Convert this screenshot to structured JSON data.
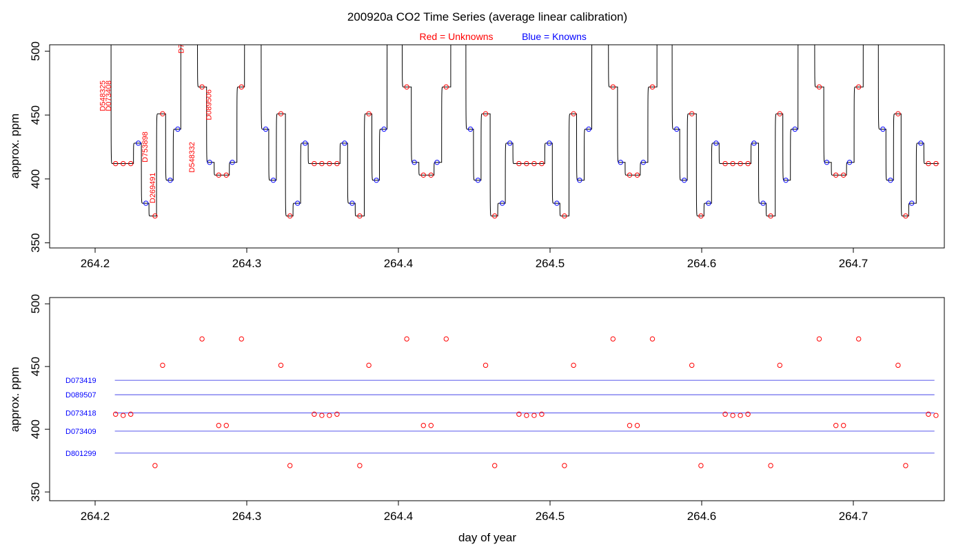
{
  "figure": {
    "title": "200920a   CO2 Time Series (average linear calibration)",
    "legend_red_label": "Red = Unknowns",
    "legend_blue_label": "Blue = Knowns",
    "xlabel": "day of year"
  },
  "colors": {
    "unknowns": "#ff0000",
    "knowns": "#0000ff",
    "reference_lines": "#6a6aee",
    "trace": "#000000",
    "axes": "#000000"
  },
  "chart_data": [
    {
      "type": "line",
      "panel": "top",
      "ylabel": "approx. ppm",
      "xlim": [
        264.17,
        264.76
      ],
      "ylim": [
        346,
        505
      ],
      "xticks": [
        264.2,
        264.3,
        264.4,
        264.5,
        264.6,
        264.7
      ],
      "xtick_labels": [
        "264.2",
        "264.3",
        "264.4",
        "264.5",
        "264.6",
        "264.7"
      ],
      "yticks": [
        350,
        400,
        450,
        500
      ],
      "ytick_labels": [
        "350",
        "400",
        "450",
        "500"
      ],
      "trace_steps": [
        {
          "start": 264.205,
          "end": 264.2105,
          "y": 525
        },
        {
          "start": 264.2105,
          "end": 264.2253,
          "y": 412,
          "points": [
            264.2135,
            264.2185,
            264.2235
          ],
          "kind": "unknown"
        },
        {
          "start": 264.2253,
          "end": 264.2305,
          "y": 428,
          "points": [
            264.2285
          ],
          "kind": "known"
        },
        {
          "start": 264.2305,
          "end": 264.2355,
          "y": 381,
          "points": [
            264.2335
          ],
          "kind": "known"
        },
        {
          "start": 264.2355,
          "end": 264.2405,
          "y": 371,
          "points": [
            264.2395
          ],
          "kind": "unknown"
        },
        {
          "start": 264.2405,
          "end": 264.2465,
          "y": 451,
          "points": [
            264.2445
          ],
          "kind": "unknown"
        },
        {
          "start": 264.2465,
          "end": 264.2515,
          "y": 399,
          "points": [
            264.2495
          ],
          "kind": "known"
        },
        {
          "start": 264.2515,
          "end": 264.2565,
          "y": 439,
          "points": [
            264.2545
          ],
          "kind": "known"
        },
        {
          "start": 264.2565,
          "end": 264.2675,
          "y": 525
        },
        {
          "start": 264.2675,
          "end": 264.2735,
          "y": 472,
          "points": [
            264.2705
          ],
          "kind": "unknown"
        },
        {
          "start": 264.2735,
          "end": 264.2785,
          "y": 413,
          "points": [
            264.2755
          ],
          "kind": "known"
        },
        {
          "start": 264.2785,
          "end": 264.2885,
          "y": 403,
          "points": [
            264.2815,
            264.2865
          ],
          "kind": "unknown"
        },
        {
          "start": 264.2885,
          "end": 264.2935,
          "y": 413,
          "points": [
            264.2905
          ],
          "kind": "known"
        },
        {
          "start": 264.2935,
          "end": 264.2985,
          "y": 472,
          "points": [
            264.2965
          ],
          "kind": "unknown"
        },
        {
          "start": 264.2985,
          "end": 264.3095,
          "y": 525
        },
        {
          "start": 264.3095,
          "end": 264.3145,
          "y": 439,
          "points": [
            264.3125
          ],
          "kind": "known"
        },
        {
          "start": 264.3145,
          "end": 264.3195,
          "y": 399,
          "points": [
            264.3175
          ],
          "kind": "known"
        },
        {
          "start": 264.3195,
          "end": 264.3255,
          "y": 451,
          "points": [
            264.3225
          ],
          "kind": "unknown"
        },
        {
          "start": 264.3255,
          "end": 264.3305,
          "y": 371,
          "points": [
            264.3285
          ],
          "kind": "unknown"
        },
        {
          "start": 264.3305,
          "end": 264.3355,
          "y": 381,
          "points": [
            264.3335
          ],
          "kind": "known"
        },
        {
          "start": 264.3355,
          "end": 264.3405,
          "y": 428,
          "points": [
            264.3385
          ],
          "kind": "known"
        },
        {
          "start": 264.3405,
          "end": 264.3615,
          "y": 412,
          "points": [
            264.3445,
            264.3495,
            264.3545,
            264.3595
          ],
          "kind": "unknown"
        },
        {
          "start": 264.3615,
          "end": 264.3665,
          "y": 428,
          "points": [
            264.3645
          ],
          "kind": "known"
        },
        {
          "start": 264.3665,
          "end": 264.3715,
          "y": 381,
          "points": [
            264.3695
          ],
          "kind": "known"
        },
        {
          "start": 264.3715,
          "end": 264.3775,
          "y": 371,
          "points": [
            264.3745
          ],
          "kind": "unknown"
        },
        {
          "start": 264.3775,
          "end": 264.3825,
          "y": 451,
          "points": [
            264.3805
          ],
          "kind": "unknown"
        },
        {
          "start": 264.3825,
          "end": 264.3875,
          "y": 399,
          "points": [
            264.3855
          ],
          "kind": "known"
        },
        {
          "start": 264.3875,
          "end": 264.3925,
          "y": 439,
          "points": [
            264.3905
          ],
          "kind": "known"
        },
        {
          "start": 264.3925,
          "end": 264.4025,
          "y": 525
        },
        {
          "start": 264.4025,
          "end": 264.4085,
          "y": 472,
          "points": [
            264.4055
          ],
          "kind": "unknown"
        },
        {
          "start": 264.4085,
          "end": 264.4135,
          "y": 413,
          "points": [
            264.4105
          ],
          "kind": "known"
        },
        {
          "start": 264.4135,
          "end": 264.4235,
          "y": 403,
          "points": [
            264.4165,
            264.4215
          ],
          "kind": "unknown"
        },
        {
          "start": 264.4235,
          "end": 264.4285,
          "y": 413,
          "points": [
            264.4255
          ],
          "kind": "known"
        },
        {
          "start": 264.4285,
          "end": 264.4345,
          "y": 472,
          "points": [
            264.4315
          ],
          "kind": "unknown"
        },
        {
          "start": 264.4345,
          "end": 264.4445,
          "y": 525
        },
        {
          "start": 264.4445,
          "end": 264.4495,
          "y": 439,
          "points": [
            264.4475
          ],
          "kind": "known"
        },
        {
          "start": 264.4495,
          "end": 264.4545,
          "y": 399,
          "points": [
            264.4525
          ],
          "kind": "known"
        },
        {
          "start": 264.4545,
          "end": 264.4605,
          "y": 451,
          "points": [
            264.4575
          ],
          "kind": "unknown"
        },
        {
          "start": 264.4605,
          "end": 264.4655,
          "y": 371,
          "points": [
            264.4635
          ],
          "kind": "unknown"
        },
        {
          "start": 264.4655,
          "end": 264.4705,
          "y": 381,
          "points": [
            264.4685
          ],
          "kind": "known"
        },
        {
          "start": 264.4705,
          "end": 264.4755,
          "y": 428,
          "points": [
            264.4735
          ],
          "kind": "known"
        },
        {
          "start": 264.4755,
          "end": 264.4965,
          "y": 412,
          "points": [
            264.4795,
            264.4845,
            264.4895,
            264.4945
          ],
          "kind": "unknown"
        },
        {
          "start": 264.4965,
          "end": 264.5015,
          "y": 428,
          "points": [
            264.4995
          ],
          "kind": "known"
        },
        {
          "start": 264.5015,
          "end": 264.5065,
          "y": 381,
          "points": [
            264.5045
          ],
          "kind": "known"
        },
        {
          "start": 264.5065,
          "end": 264.5125,
          "y": 371,
          "points": [
            264.5095
          ],
          "kind": "unknown"
        },
        {
          "start": 264.5125,
          "end": 264.5175,
          "y": 451,
          "points": [
            264.5155
          ],
          "kind": "unknown"
        },
        {
          "start": 264.5175,
          "end": 264.5225,
          "y": 399,
          "points": [
            264.5195
          ],
          "kind": "known"
        },
        {
          "start": 264.5225,
          "end": 264.5275,
          "y": 439,
          "points": [
            264.5255
          ],
          "kind": "known"
        },
        {
          "start": 264.5275,
          "end": 264.5385,
          "y": 525
        },
        {
          "start": 264.5385,
          "end": 264.5445,
          "y": 472,
          "points": [
            264.5415
          ],
          "kind": "unknown"
        },
        {
          "start": 264.5445,
          "end": 264.5495,
          "y": 413,
          "points": [
            264.5465
          ],
          "kind": "known"
        },
        {
          "start": 264.5495,
          "end": 264.5595,
          "y": 403,
          "points": [
            264.5525,
            264.5575
          ],
          "kind": "unknown"
        },
        {
          "start": 264.5595,
          "end": 264.5645,
          "y": 413,
          "points": [
            264.5615
          ],
          "kind": "known"
        },
        {
          "start": 264.5645,
          "end": 264.5705,
          "y": 472,
          "points": [
            264.5675
          ],
          "kind": "unknown"
        },
        {
          "start": 264.5705,
          "end": 264.5805,
          "y": 525
        },
        {
          "start": 264.5805,
          "end": 264.5855,
          "y": 439,
          "points": [
            264.5835
          ],
          "kind": "known"
        },
        {
          "start": 264.5855,
          "end": 264.5905,
          "y": 399,
          "points": [
            264.5885
          ],
          "kind": "known"
        },
        {
          "start": 264.5905,
          "end": 264.5965,
          "y": 451,
          "points": [
            264.5935
          ],
          "kind": "unknown"
        },
        {
          "start": 264.5965,
          "end": 264.6015,
          "y": 371,
          "points": [
            264.5995
          ],
          "kind": "unknown"
        },
        {
          "start": 264.6015,
          "end": 264.6065,
          "y": 381,
          "points": [
            264.6045
          ],
          "kind": "known"
        },
        {
          "start": 264.6065,
          "end": 264.6115,
          "y": 428,
          "points": [
            264.6095
          ],
          "kind": "known"
        },
        {
          "start": 264.6115,
          "end": 264.6325,
          "y": 412,
          "points": [
            264.6155,
            264.6205,
            264.6255,
            264.6305
          ],
          "kind": "unknown"
        },
        {
          "start": 264.6325,
          "end": 264.6375,
          "y": 428,
          "points": [
            264.6345
          ],
          "kind": "known"
        },
        {
          "start": 264.6375,
          "end": 264.6425,
          "y": 381,
          "points": [
            264.6405
          ],
          "kind": "known"
        },
        {
          "start": 264.6425,
          "end": 264.6485,
          "y": 371,
          "points": [
            264.6455
          ],
          "kind": "unknown"
        },
        {
          "start": 264.6485,
          "end": 264.6535,
          "y": 451,
          "points": [
            264.6515
          ],
          "kind": "unknown"
        },
        {
          "start": 264.6535,
          "end": 264.6585,
          "y": 399,
          "points": [
            264.6555
          ],
          "kind": "known"
        },
        {
          "start": 264.6585,
          "end": 264.6635,
          "y": 439,
          "points": [
            264.6615
          ],
          "kind": "known"
        },
        {
          "start": 264.6635,
          "end": 264.6745,
          "y": 525
        },
        {
          "start": 264.6745,
          "end": 264.6805,
          "y": 472,
          "points": [
            264.6775
          ],
          "kind": "unknown"
        },
        {
          "start": 264.6805,
          "end": 264.6855,
          "y": 413,
          "points": [
            264.6825
          ],
          "kind": "known"
        },
        {
          "start": 264.6855,
          "end": 264.6955,
          "y": 403,
          "points": [
            264.6885,
            264.6935
          ],
          "kind": "unknown"
        },
        {
          "start": 264.6955,
          "end": 264.7005,
          "y": 413,
          "points": [
            264.6975
          ],
          "kind": "known"
        },
        {
          "start": 264.7005,
          "end": 264.7065,
          "y": 472,
          "points": [
            264.7035
          ],
          "kind": "unknown"
        },
        {
          "start": 264.7065,
          "end": 264.7165,
          "y": 525
        },
        {
          "start": 264.7165,
          "end": 264.7215,
          "y": 439,
          "points": [
            264.7195
          ],
          "kind": "known"
        },
        {
          "start": 264.7215,
          "end": 264.7265,
          "y": 399,
          "points": [
            264.7245
          ],
          "kind": "known"
        },
        {
          "start": 264.7265,
          "end": 264.7315,
          "y": 451,
          "points": [
            264.7295
          ],
          "kind": "unknown"
        },
        {
          "start": 264.7315,
          "end": 264.7365,
          "y": 371,
          "points": [
            264.7345
          ],
          "kind": "unknown"
        },
        {
          "start": 264.7365,
          "end": 264.7415,
          "y": 381,
          "points": [
            264.7385
          ],
          "kind": "known"
        },
        {
          "start": 264.7415,
          "end": 264.7465,
          "y": 428,
          "points": [
            264.7445
          ],
          "kind": "known"
        },
        {
          "start": 264.7465,
          "end": 264.7565,
          "y": 412,
          "points": [
            264.7495,
            264.7545
          ],
          "kind": "unknown"
        }
      ],
      "annotations": [
        {
          "text": "D548325",
          "x": 264.2065,
          "y": 465
        },
        {
          "text": "D073408",
          "x": 264.2105,
          "y": 465
        },
        {
          "text": "D753898",
          "x": 264.2345,
          "y": 425
        },
        {
          "text": "D269491",
          "x": 264.2395,
          "y": 393
        },
        {
          "text": "D7",
          "x": 264.2585,
          "y": 502
        },
        {
          "text": "D548332",
          "x": 264.2655,
          "y": 417
        },
        {
          "text": "D089506",
          "x": 264.2765,
          "y": 458
        }
      ]
    },
    {
      "type": "scatter",
      "panel": "bottom",
      "ylabel": "approx. ppm",
      "xlim": [
        264.17,
        264.76
      ],
      "ylim": [
        343,
        505
      ],
      "xticks": [
        264.2,
        264.3,
        264.4,
        264.5,
        264.6,
        264.7
      ],
      "xtick_labels": [
        "264.2",
        "264.3",
        "264.4",
        "264.5",
        "264.6",
        "264.7"
      ],
      "yticks": [
        350,
        400,
        450,
        500
      ],
      "ytick_labels": [
        "350",
        "400",
        "450",
        "500"
      ],
      "reference_lines": [
        {
          "name": "D073419",
          "y": 439
        },
        {
          "name": "D089507",
          "y": 427.5
        },
        {
          "name": "D073418",
          "y": 413
        },
        {
          "name": "D073409",
          "y": 398.5
        },
        {
          "name": "D801299",
          "y": 381
        }
      ],
      "reference_x_range": [
        264.213,
        264.7535
      ],
      "unknowns_x": [
        264.2135,
        264.2185,
        264.2235,
        264.2395,
        264.2445,
        264.2705,
        264.2815,
        264.2865,
        264.2965,
        264.3225,
        264.3285,
        264.3445,
        264.3495,
        264.3545,
        264.3595,
        264.3745,
        264.3805,
        264.4055,
        264.4165,
        264.4215,
        264.4315,
        264.4575,
        264.4635,
        264.4795,
        264.4845,
        264.4895,
        264.4945,
        264.5095,
        264.5155,
        264.5415,
        264.5525,
        264.5575,
        264.5675,
        264.5935,
        264.5995,
        264.6155,
        264.6205,
        264.6255,
        264.6305,
        264.6455,
        264.6515,
        264.6775,
        264.6885,
        264.6935,
        264.7035,
        264.7295,
        264.7345,
        264.7495,
        264.7545
      ],
      "unknowns_y": [
        412,
        411,
        412,
        371,
        451,
        472,
        403,
        403,
        472,
        451,
        371,
        412,
        411,
        411,
        412,
        371,
        451,
        472,
        403,
        403,
        472,
        451,
        371,
        412,
        411,
        411,
        412,
        371,
        451,
        472,
        403,
        403,
        472,
        451,
        371,
        412,
        411,
        411,
        412,
        371,
        451,
        472,
        403,
        403,
        472,
        451,
        371,
        412,
        411
      ]
    }
  ]
}
